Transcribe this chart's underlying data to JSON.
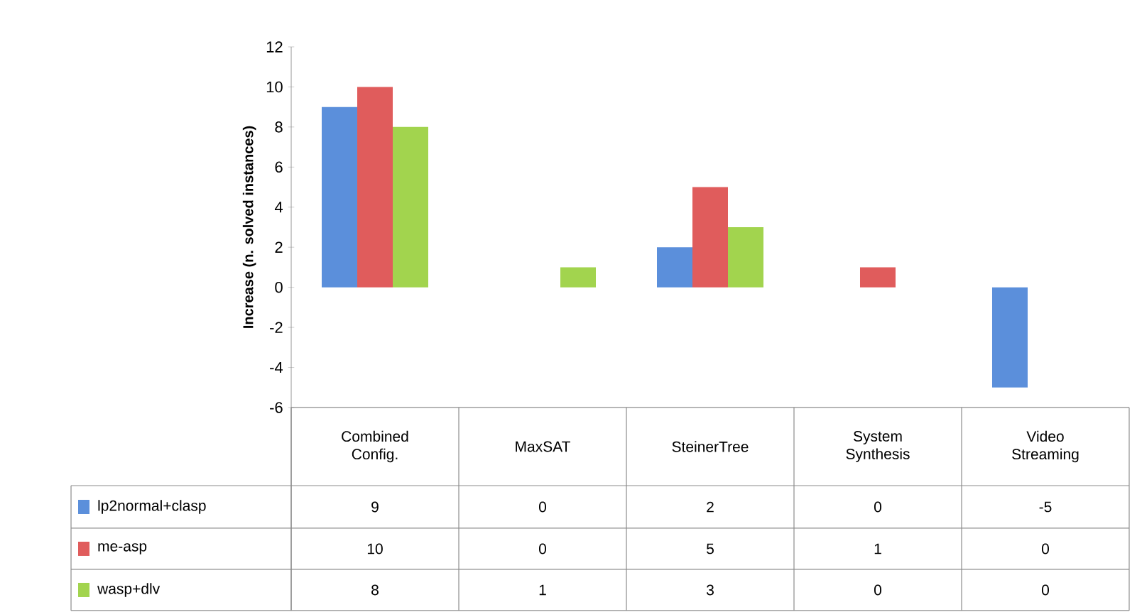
{
  "chart_data": {
    "type": "bar",
    "ylabel": "Increase (n. solved instances)",
    "categories": [
      "Combined Config.",
      "MaxSAT",
      "SteinerTree",
      "System Synthesis",
      "Video Streaming"
    ],
    "series": [
      {
        "name": "lp2normal+clasp",
        "color": "#5b8fdb",
        "values": [
          9,
          0,
          2,
          0,
          -5
        ]
      },
      {
        "name": "me-asp",
        "color": "#e05c5c",
        "values": [
          10,
          0,
          5,
          1,
          0
        ]
      },
      {
        "name": "wasp+dlv",
        "color": "#a2d44e",
        "values": [
          8,
          1,
          3,
          0,
          0
        ]
      }
    ],
    "ylim": [
      -6,
      12
    ],
    "yticks": [
      -6,
      -4,
      -2,
      0,
      2,
      4,
      6,
      8,
      10,
      12
    ],
    "data_labels": true,
    "legend": "bottom left"
  }
}
